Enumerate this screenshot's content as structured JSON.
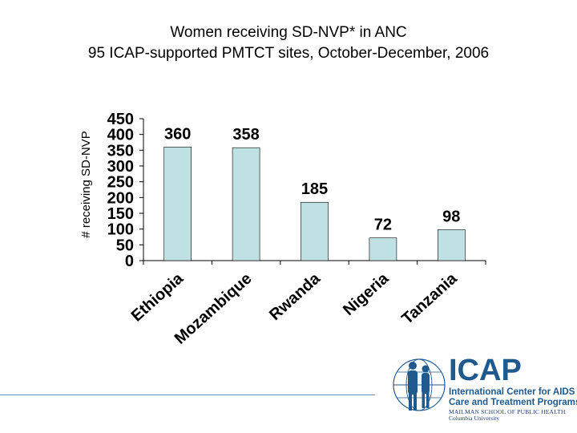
{
  "chart_data": {
    "type": "bar",
    "title": "Women receiving SD-NVP* in ANC",
    "subtitle": "95 ICAP-supported PMTCT sites, October-December, 2006",
    "ylabel": "# receiving SD-NVP",
    "xlabel": "",
    "categories": [
      "Ethiopia",
      "Mozambique",
      "Rwanda",
      "Nigeria",
      "Tanzania"
    ],
    "values": [
      360,
      358,
      185,
      72,
      98
    ],
    "data_labels": [
      "360",
      "358",
      "185",
      "72",
      "98"
    ],
    "ylim": [
      0,
      450
    ],
    "yticks": [
      "0",
      "50",
      "100",
      "150",
      "200",
      "250",
      "300",
      "350",
      "400",
      "450"
    ],
    "grid": false,
    "legend": "none",
    "bar_color": "#bfe1e3",
    "bar_edge_color": "#000000"
  },
  "logo": {
    "word": "ICAP",
    "line1": "International Center for AIDS",
    "line2": "Care and Treatment Programs",
    "line3": "MAILMAN SCHOOL OF PUBLIC HEALTH",
    "line4": "Columbia University",
    "icon": "people-globe-icon",
    "color": "#1f5a8f"
  }
}
